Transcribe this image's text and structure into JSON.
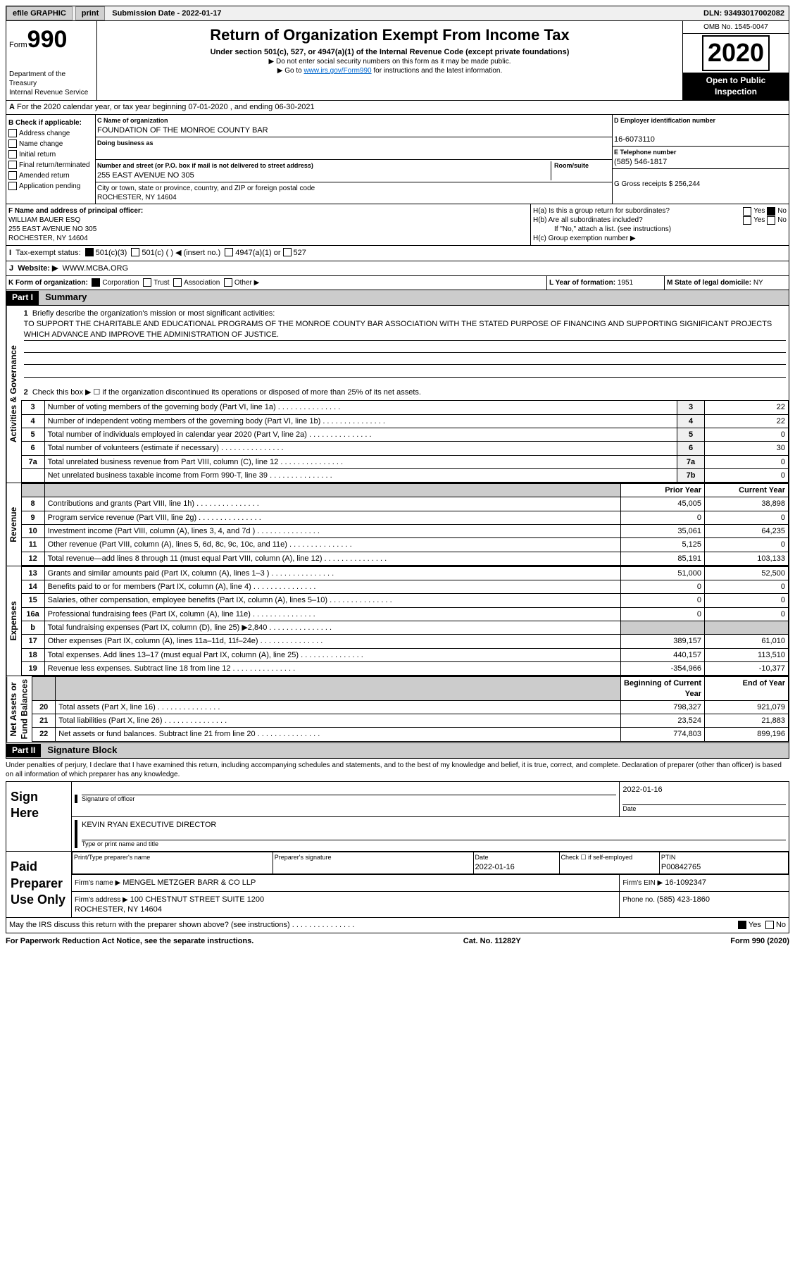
{
  "topbar": {
    "efile": "efile GRAPHIC",
    "print": "print",
    "subdate_lbl": "Submission Date - ",
    "subdate": "2022-01-17",
    "dln_lbl": "DLN: ",
    "dln": "93493017002082"
  },
  "header": {
    "form_lbl": "Form",
    "form_num": "990",
    "title": "Return of Organization Exempt From Income Tax",
    "subtitle": "Under section 501(c), 527, or 4947(a)(1) of the Internal Revenue Code (except private foundations)",
    "note1": "▶ Do not enter social security numbers on this form as it may be made public.",
    "note2_pre": "▶ Go to ",
    "note2_link": "www.irs.gov/Form990",
    "note2_post": " for instructions and the latest information.",
    "dept": "Department of the Treasury\nInternal Revenue Service",
    "omb": "OMB No. 1545-0047",
    "year": "2020",
    "open": "Open to Public\nInspection"
  },
  "sectionA": {
    "text": "For the 2020 calendar year, or tax year beginning 07-01-2020    , and ending 06-30-2021"
  },
  "B": {
    "lbl": "B Check if applicable:",
    "items": [
      "Address change",
      "Name change",
      "Initial return",
      "Final return/terminated",
      "Amended return",
      "Application pending"
    ]
  },
  "C": {
    "name_lbl": "C Name of organization",
    "name": "FOUNDATION OF THE MONROE COUNTY BAR",
    "dba_lbl": "Doing business as",
    "dba": "",
    "addr_lbl": "Number and street (or P.O. box if mail is not delivered to street address)",
    "room_lbl": "Room/suite",
    "addr": "255 EAST AVENUE NO 305",
    "city_lbl": "City or town, state or province, country, and ZIP or foreign postal code",
    "city": "ROCHESTER, NY  14604"
  },
  "D": {
    "lbl": "D Employer identification number",
    "val": "16-6073110"
  },
  "E": {
    "lbl": "E Telephone number",
    "val": "(585) 546-1817"
  },
  "G": {
    "lbl": "G Gross receipts $ ",
    "val": "256,244"
  },
  "F": {
    "lbl": "F  Name and address of principal officer:",
    "name": "WILLIAM BAUER ESQ",
    "addr1": "255 EAST AVENUE NO 305",
    "addr2": "ROCHESTER, NY  14604"
  },
  "H": {
    "a": "H(a)  Is this a group return for subordinates?",
    "b": "H(b)  Are all subordinates included?",
    "bnote": "If \"No,\" attach a list. (see instructions)",
    "c": "H(c)  Group exemption number ▶"
  },
  "I": {
    "lbl": "Tax-exempt status:",
    "o1": "501(c)(3)",
    "o2": "501(c) (  ) ◀ (insert no.)",
    "o3": "4947(a)(1) or",
    "o4": "527"
  },
  "J": {
    "lbl": "Website: ▶",
    "val": "WWW.MCBA.ORG"
  },
  "K": {
    "lbl": "K Form of organization:",
    "o1": "Corporation",
    "o2": "Trust",
    "o3": "Association",
    "o4": "Other ▶"
  },
  "L": {
    "lbl": "L Year of formation: ",
    "val": "1951"
  },
  "M": {
    "lbl": "M State of legal domicile: ",
    "val": "NY"
  },
  "part1": {
    "bar": "Part I",
    "title": "Summary",
    "vlabels": [
      "Activities & Governance",
      "Revenue",
      "Expenses",
      "Net Assets or\nFund Balances"
    ],
    "q1": "Briefly describe the organization's mission or most significant activities:",
    "mission": "TO SUPPORT THE CHARITABLE AND EDUCATIONAL PROGRAMS OF THE MONROE COUNTY BAR ASSOCIATION WITH THE STATED PURPOSE OF FINANCING AND SUPPORTING SIGNIFICANT PROJECTS WHICH ADVANCE AND IMPROVE THE ADMINISTRATION OF JUSTICE.",
    "q2": "Check this box ▶ ☐  if the organization discontinued its operations or disposed of more than 25% of its net assets.",
    "lines_gov": [
      {
        "n": "3",
        "d": "Number of voting members of the governing body (Part VI, line 1a)",
        "ln": "3",
        "v": "22"
      },
      {
        "n": "4",
        "d": "Number of independent voting members of the governing body (Part VI, line 1b)",
        "ln": "4",
        "v": "22"
      },
      {
        "n": "5",
        "d": "Total number of individuals employed in calendar year 2020 (Part V, line 2a)",
        "ln": "5",
        "v": "0"
      },
      {
        "n": "6",
        "d": "Total number of volunteers (estimate if necessary)",
        "ln": "6",
        "v": "30"
      },
      {
        "n": "7a",
        "d": "Total unrelated business revenue from Part VIII, column (C), line 12",
        "ln": "7a",
        "v": "0"
      },
      {
        "n": "",
        "d": "Net unrelated business taxable income from Form 990-T, line 39",
        "ln": "7b",
        "v": "0"
      }
    ],
    "col_py": "Prior Year",
    "col_cy": "Current Year",
    "lines_rev": [
      {
        "n": "8",
        "d": "Contributions and grants (Part VIII, line 1h)",
        "py": "45,005",
        "cy": "38,898"
      },
      {
        "n": "9",
        "d": "Program service revenue (Part VIII, line 2g)",
        "py": "0",
        "cy": "0"
      },
      {
        "n": "10",
        "d": "Investment income (Part VIII, column (A), lines 3, 4, and 7d )",
        "py": "35,061",
        "cy": "64,235"
      },
      {
        "n": "11",
        "d": "Other revenue (Part VIII, column (A), lines 5, 6d, 8c, 9c, 10c, and 11e)",
        "py": "5,125",
        "cy": "0"
      },
      {
        "n": "12",
        "d": "Total revenue—add lines 8 through 11 (must equal Part VIII, column (A), line 12)",
        "py": "85,191",
        "cy": "103,133"
      }
    ],
    "lines_exp": [
      {
        "n": "13",
        "d": "Grants and similar amounts paid (Part IX, column (A), lines 1–3 )",
        "py": "51,000",
        "cy": "52,500"
      },
      {
        "n": "14",
        "d": "Benefits paid to or for members (Part IX, column (A), line 4)",
        "py": "0",
        "cy": "0"
      },
      {
        "n": "15",
        "d": "Salaries, other compensation, employee benefits (Part IX, column (A), lines 5–10)",
        "py": "0",
        "cy": "0"
      },
      {
        "n": "16a",
        "d": "Professional fundraising fees (Part IX, column (A), line 11e)",
        "py": "0",
        "cy": "0"
      },
      {
        "n": "b",
        "d": "Total fundraising expenses (Part IX, column (D), line 25) ▶2,840",
        "py": "",
        "cy": "",
        "shaded": true
      },
      {
        "n": "17",
        "d": "Other expenses (Part IX, column (A), lines 11a–11d, 11f–24e)",
        "py": "389,157",
        "cy": "61,010"
      },
      {
        "n": "18",
        "d": "Total expenses. Add lines 13–17 (must equal Part IX, column (A), line 25)",
        "py": "440,157",
        "cy": "113,510"
      },
      {
        "n": "19",
        "d": "Revenue less expenses. Subtract line 18 from line 12",
        "py": "-354,966",
        "cy": "-10,377"
      }
    ],
    "col_boy": "Beginning of Current Year",
    "col_eoy": "End of Year",
    "lines_net": [
      {
        "n": "20",
        "d": "Total assets (Part X, line 16)",
        "py": "798,327",
        "cy": "921,079"
      },
      {
        "n": "21",
        "d": "Total liabilities (Part X, line 26)",
        "py": "23,524",
        "cy": "21,883"
      },
      {
        "n": "22",
        "d": "Net assets or fund balances. Subtract line 21 from line 20",
        "py": "774,803",
        "cy": "899,196"
      }
    ]
  },
  "part2": {
    "bar": "Part II",
    "title": "Signature Block",
    "decl": "Under penalties of perjury, I declare that I have examined this return, including accompanying schedules and statements, and to the best of my knowledge and belief, it is true, correct, and complete. Declaration of preparer (other than officer) is based on all information of which preparer has any knowledge.",
    "signhere": "Sign Here",
    "sig_officer": "Signature of officer",
    "sig_date_lbl": "Date",
    "sig_date": "2022-01-16",
    "officer_name": "KEVIN RYAN  EXECUTIVE DIRECTOR",
    "officer_title_lbl": "Type or print name and title",
    "paid": "Paid Preparer Use Only",
    "prep_name_lbl": "Print/Type preparer's name",
    "prep_sig_lbl": "Preparer's signature",
    "prep_date_lbl": "Date",
    "prep_date": "2022-01-16",
    "self_lbl": "Check ☐ if self-employed",
    "ptin_lbl": "PTIN",
    "ptin": "P00842765",
    "firm_name_lbl": "Firm's name    ▶",
    "firm_name": "MENGEL METZGER BARR & CO LLP",
    "firm_ein_lbl": "Firm's EIN ▶",
    "firm_ein": "16-1092347",
    "firm_addr_lbl": "Firm's address ▶",
    "firm_addr": "100 CHESTNUT STREET SUITE 1200\nROCHESTER, NY  14604",
    "phone_lbl": "Phone no. ",
    "phone": "(585) 423-1860",
    "discuss": "May the IRS discuss this return with the preparer shown above? (see instructions)"
  },
  "footer": {
    "left": "For Paperwork Reduction Act Notice, see the separate instructions.",
    "mid": "Cat. No. 11282Y",
    "right": "Form 990 (2020)"
  }
}
